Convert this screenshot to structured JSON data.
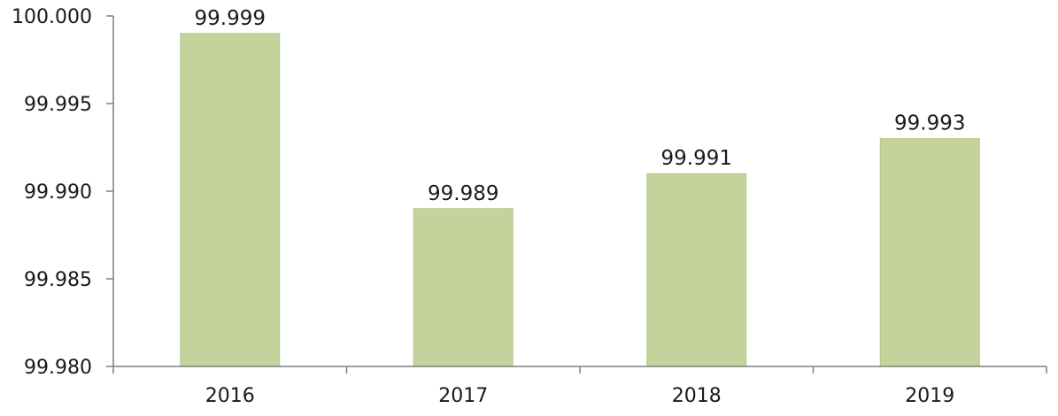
{
  "chart_data": {
    "type": "bar",
    "title": "",
    "xlabel": "",
    "ylabel": "",
    "categories": [
      "2016",
      "2017",
      "2018",
      "2019"
    ],
    "values": [
      99.999,
      99.989,
      99.991,
      99.993
    ],
    "value_labels": [
      "99.999",
      "99.989",
      "99.991",
      "99.993"
    ],
    "ylim": [
      99.98,
      100.0
    ],
    "yticks": [
      99.98,
      99.985,
      99.99,
      99.995,
      100.0
    ],
    "ytick_labels": [
      "99.980",
      "99.985",
      "99.990",
      "99.995",
      "100.000"
    ],
    "grid": false,
    "legend": "none",
    "bar_color": "#c4d39b",
    "bar_edge_color": "#b5c68a"
  }
}
